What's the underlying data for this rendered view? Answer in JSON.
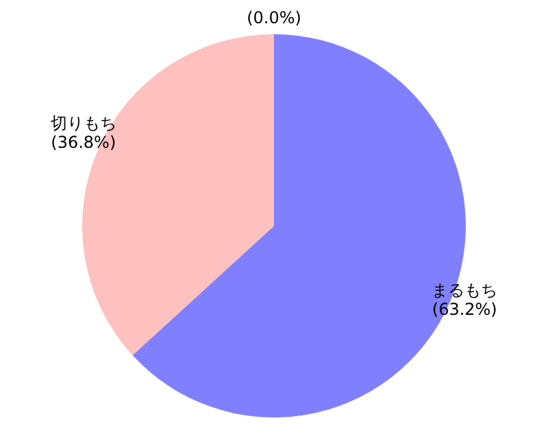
{
  "chart_data": {
    "type": "pie",
    "categories": [
      "まるもち",
      "切りもち",
      null
    ],
    "values": [
      63.2,
      36.8,
      0
    ],
    "colors": [
      "#8080ff",
      "#ffc0c0",
      "#c0ffc0"
    ],
    "value_labels": [
      "(63.2%)",
      "(36.8%)",
      "(0.0%)"
    ]
  }
}
